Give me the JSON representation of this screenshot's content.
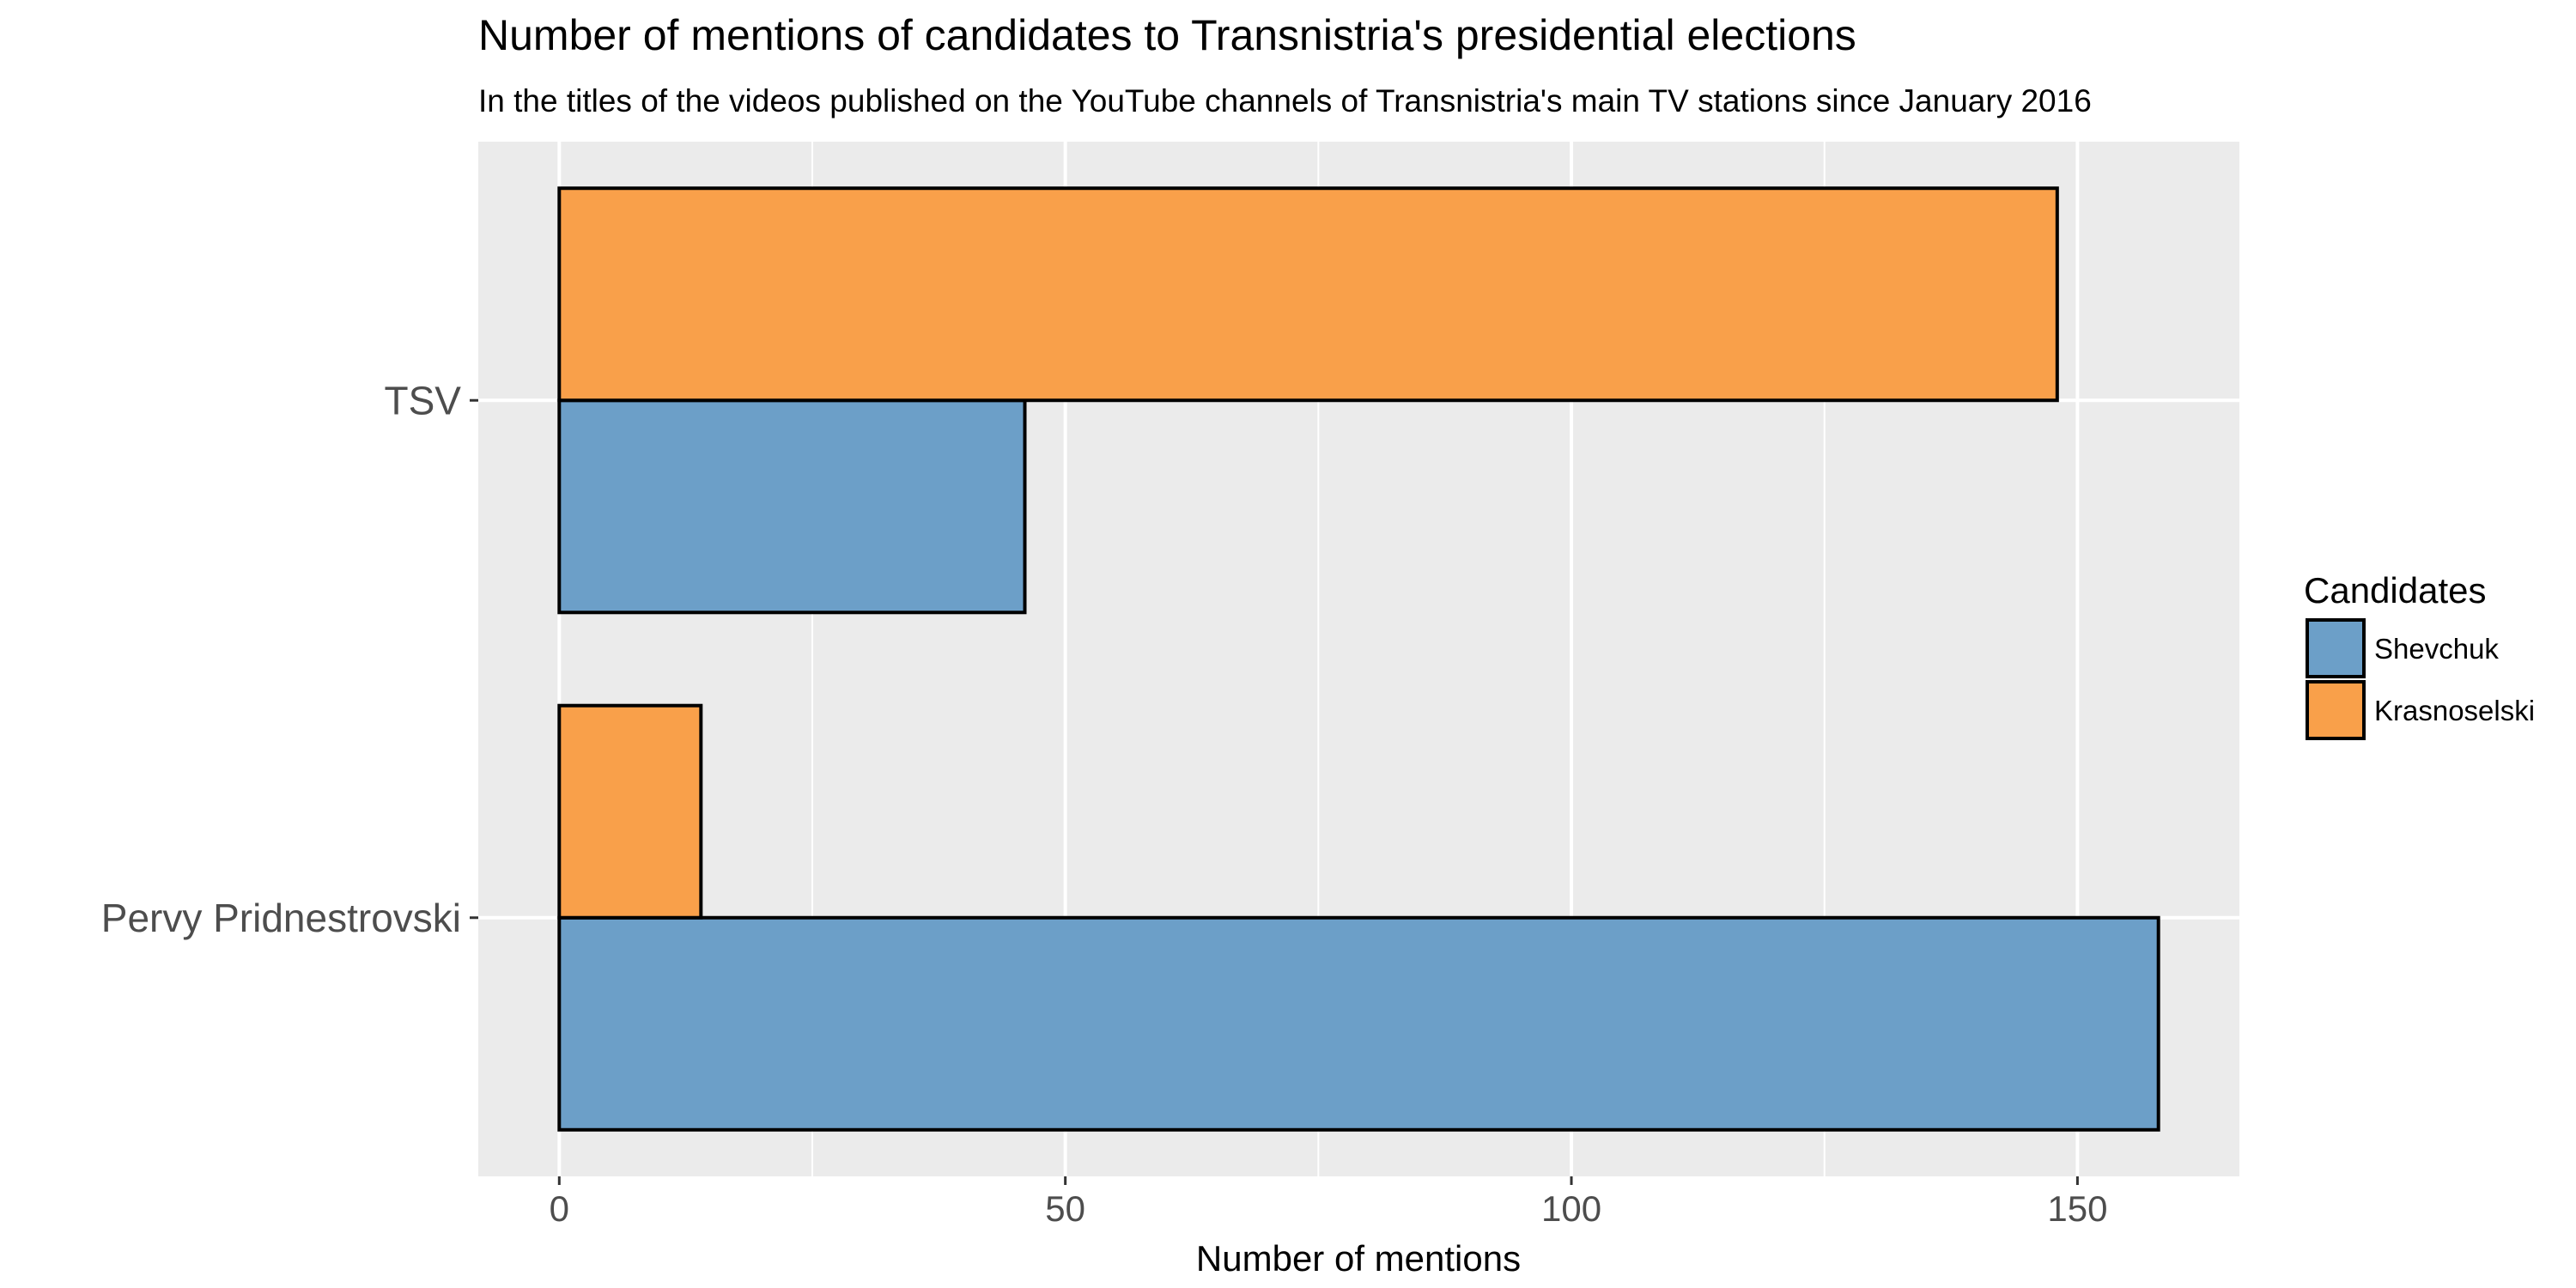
{
  "chart_data": {
    "type": "bar",
    "orientation": "horizontal",
    "title": "Number of mentions of candidates to Transnistria's presidential elections",
    "subtitle": "In the titles of the videos published on the YouTube channels of Transnistria's main TV stations since January 2016",
    "xlabel": "Number of mentions",
    "ylabel": "",
    "categories": [
      "Pervy Pridnestrovski",
      "TSV"
    ],
    "series": [
      {
        "name": "Shevchuk",
        "color": "#6c9fc8",
        "values": [
          158,
          46
        ]
      },
      {
        "name": "Krasnoselski",
        "color": "#f9a04a",
        "values": [
          14,
          148
        ]
      }
    ],
    "xlim": [
      -8,
      166
    ],
    "xticks": [
      0,
      50,
      100,
      150
    ],
    "xtick_labels": [
      "0",
      "50",
      "100",
      "150"
    ],
    "legend": {
      "title": "Candidates",
      "position": "right"
    },
    "grid": true,
    "panel_background": "#ebebeb",
    "grid_color": "#ffffff"
  }
}
